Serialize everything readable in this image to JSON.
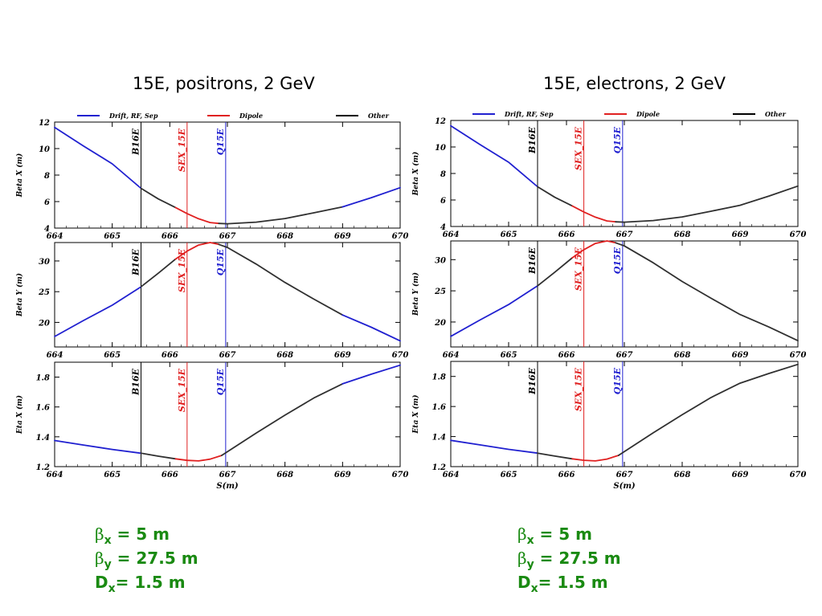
{
  "panels": [
    {
      "title": "15E, positrons, 2 GeV"
    },
    {
      "title": "15E, electrons, 2 GeV"
    }
  ],
  "legend": [
    {
      "label": "Drift, RF, Sep",
      "color": "#2020d0"
    },
    {
      "label": "Dipole",
      "color": "#e02020"
    },
    {
      "label": "Other",
      "color": "#000000"
    }
  ],
  "colors": {
    "drift": "#2020d0",
    "dipole": "#e02020",
    "other": "#303030",
    "param_text": "#1a8a12"
  },
  "markers": [
    {
      "label": "B16E",
      "s": 665.5,
      "color": "#000000"
    },
    {
      "label": "SEX_15E",
      "s": 666.3,
      "color": "#e02020"
    },
    {
      "label": "Q15E",
      "s": 666.97,
      "color": "#2020d0"
    }
  ],
  "params": [
    {
      "sym": "β",
      "sub": "x",
      "text": " = 5 m"
    },
    {
      "sym": "β",
      "sub": "y",
      "text": " = 27.5 m"
    },
    {
      "sym": "D",
      "sub": "x",
      "text": "= 1.5 m"
    }
  ],
  "chart_data": [
    {
      "type": "line",
      "panel": "15E, positrons, 2 GeV",
      "plots": [
        {
          "ylabel": "Beta X (m)",
          "xlabel": "",
          "xlim": [
            664,
            670
          ],
          "ylim": [
            4,
            12
          ],
          "xticks": [
            664,
            665,
            666,
            667,
            668,
            669,
            670
          ],
          "yticks": [
            4,
            6,
            8,
            10,
            12
          ],
          "segments": [
            {
              "type": "drift",
              "points": [
                [
                  664,
                  11.6
                ],
                [
                  664.5,
                  10.2
                ],
                [
                  665,
                  8.85
                ],
                [
                  665.5,
                  7.0
                ]
              ]
            },
            {
              "type": "other",
              "points": [
                [
                  665.5,
                  7.0
                ],
                [
                  665.8,
                  6.2
                ],
                [
                  666.1,
                  5.55
                ]
              ]
            },
            {
              "type": "dipole",
              "points": [
                [
                  666.1,
                  5.55
                ],
                [
                  666.3,
                  5.1
                ],
                [
                  666.5,
                  4.7
                ],
                [
                  666.7,
                  4.42
                ],
                [
                  666.85,
                  4.35
                ]
              ]
            },
            {
              "type": "other",
              "points": [
                [
                  666.85,
                  4.35
                ],
                [
                  667,
                  4.33
                ],
                [
                  667.5,
                  4.45
                ],
                [
                  668,
                  4.72
                ],
                [
                  668.5,
                  5.15
                ],
                [
                  669,
                  5.6
                ]
              ]
            },
            {
              "type": "drift",
              "points": [
                [
                  669,
                  5.6
                ],
                [
                  669.5,
                  6.3
                ],
                [
                  670,
                  7.05
                ]
              ]
            }
          ]
        },
        {
          "ylabel": "Beta Y (m)",
          "xlabel": "",
          "xlim": [
            664,
            670
          ],
          "ylim": [
            16,
            33
          ],
          "xticks": [
            664,
            665,
            666,
            667,
            668,
            669,
            670
          ],
          "yticks": [
            20,
            25,
            30
          ],
          "segments": [
            {
              "type": "drift",
              "points": [
                [
                  664,
                  17.7
                ],
                [
                  664.5,
                  20.3
                ],
                [
                  665,
                  22.8
                ],
                [
                  665.5,
                  25.8
                ]
              ]
            },
            {
              "type": "other",
              "points": [
                [
                  665.5,
                  25.8
                ],
                [
                  665.8,
                  28.0
                ],
                [
                  666.1,
                  30.3
                ]
              ]
            },
            {
              "type": "dipole",
              "points": [
                [
                  666.1,
                  30.3
                ],
                [
                  666.3,
                  31.6
                ],
                [
                  666.5,
                  32.6
                ],
                [
                  666.7,
                  33.0
                ],
                [
                  666.85,
                  32.7
                ]
              ]
            },
            {
              "type": "other",
              "points": [
                [
                  666.85,
                  32.7
                ],
                [
                  667,
                  32.2
                ],
                [
                  667.5,
                  29.5
                ],
                [
                  668,
                  26.5
                ],
                [
                  668.5,
                  23.8
                ],
                [
                  669,
                  21.2
                ]
              ]
            },
            {
              "type": "drift",
              "points": [
                [
                  669,
                  21.2
                ],
                [
                  669.5,
                  19.2
                ],
                [
                  670,
                  17.0
                ]
              ]
            }
          ]
        },
        {
          "ylabel": "Eta X (m)",
          "xlabel": "S(m)",
          "xlim": [
            664,
            670
          ],
          "ylim": [
            1.2,
            1.9
          ],
          "xticks": [
            664,
            665,
            666,
            667,
            668,
            669,
            670
          ],
          "yticks": [
            1.2,
            1.4,
            1.6,
            1.8
          ],
          "segments": [
            {
              "type": "drift",
              "points": [
                [
                  664,
                  1.375
                ],
                [
                  664.5,
                  1.345
                ],
                [
                  665,
                  1.315
                ],
                [
                  665.5,
                  1.29
                ]
              ]
            },
            {
              "type": "other",
              "points": [
                [
                  665.5,
                  1.29
                ],
                [
                  665.8,
                  1.27
                ],
                [
                  666.1,
                  1.252
                ]
              ]
            },
            {
              "type": "dipole",
              "points": [
                [
                  666.1,
                  1.252
                ],
                [
                  666.3,
                  1.242
                ],
                [
                  666.5,
                  1.238
                ],
                [
                  666.7,
                  1.25
                ],
                [
                  666.9,
                  1.275
                ]
              ]
            },
            {
              "type": "other",
              "points": [
                [
                  666.9,
                  1.275
                ],
                [
                  667.5,
                  1.425
                ],
                [
                  668,
                  1.545
                ],
                [
                  668.5,
                  1.66
                ],
                [
                  669,
                  1.755
                ]
              ]
            },
            {
              "type": "drift",
              "points": [
                [
                  669,
                  1.755
                ],
                [
                  669.5,
                  1.82
                ],
                [
                  670,
                  1.88
                ]
              ]
            }
          ]
        }
      ]
    },
    {
      "type": "line",
      "panel": "15E, electrons, 2 GeV",
      "plots": [
        {
          "ylabel": "Beta X (m)",
          "xlabel": "",
          "xlim": [
            664,
            670
          ],
          "ylim": [
            4,
            12
          ],
          "xticks": [
            664,
            665,
            666,
            667,
            668,
            669,
            670
          ],
          "yticks": [
            4,
            6,
            8,
            10,
            12
          ],
          "segments": [
            {
              "type": "drift",
              "points": [
                [
                  664,
                  11.6
                ],
                [
                  664.5,
                  10.2
                ],
                [
                  665,
                  8.85
                ],
                [
                  665.5,
                  7.0
                ]
              ]
            },
            {
              "type": "other",
              "points": [
                [
                  665.5,
                  7.0
                ],
                [
                  665.8,
                  6.2
                ],
                [
                  666.1,
                  5.55
                ]
              ]
            },
            {
              "type": "dipole",
              "points": [
                [
                  666.1,
                  5.55
                ],
                [
                  666.3,
                  5.1
                ],
                [
                  666.5,
                  4.7
                ],
                [
                  666.7,
                  4.42
                ],
                [
                  666.85,
                  4.35
                ]
              ]
            },
            {
              "type": "other",
              "points": [
                [
                  666.85,
                  4.35
                ],
                [
                  667,
                  4.33
                ],
                [
                  667.5,
                  4.45
                ],
                [
                  668,
                  4.72
                ],
                [
                  668.5,
                  5.15
                ],
                [
                  669,
                  5.6
                ],
                [
                  669.5,
                  6.3
                ],
                [
                  670,
                  7.05
                ]
              ]
            }
          ]
        },
        {
          "ylabel": "Beta Y (m)",
          "xlabel": "",
          "xlim": [
            664,
            670
          ],
          "ylim": [
            16,
            33
          ],
          "xticks": [
            664,
            665,
            666,
            667,
            668,
            669,
            670
          ],
          "yticks": [
            20,
            25,
            30
          ],
          "segments": [
            {
              "type": "drift",
              "points": [
                [
                  664,
                  17.7
                ],
                [
                  664.5,
                  20.3
                ],
                [
                  665,
                  22.8
                ],
                [
                  665.5,
                  25.8
                ]
              ]
            },
            {
              "type": "other",
              "points": [
                [
                  665.5,
                  25.8
                ],
                [
                  665.8,
                  28.0
                ],
                [
                  666.1,
                  30.3
                ]
              ]
            },
            {
              "type": "dipole",
              "points": [
                [
                  666.1,
                  30.3
                ],
                [
                  666.3,
                  31.6
                ],
                [
                  666.5,
                  32.6
                ],
                [
                  666.7,
                  33.0
                ],
                [
                  666.85,
                  32.7
                ]
              ]
            },
            {
              "type": "other",
              "points": [
                [
                  666.85,
                  32.7
                ],
                [
                  667,
                  32.2
                ],
                [
                  667.5,
                  29.5
                ],
                [
                  668,
                  26.5
                ],
                [
                  668.5,
                  23.8
                ],
                [
                  669,
                  21.2
                ],
                [
                  669.5,
                  19.2
                ],
                [
                  670,
                  17.0
                ]
              ]
            }
          ]
        },
        {
          "ylabel": "Eta X (m)",
          "xlabel": "S(m)",
          "xlim": [
            664,
            670
          ],
          "ylim": [
            1.2,
            1.9
          ],
          "xticks": [
            664,
            665,
            666,
            667,
            668,
            669,
            670
          ],
          "yticks": [
            1.2,
            1.4,
            1.6,
            1.8
          ],
          "segments": [
            {
              "type": "drift",
              "points": [
                [
                  664,
                  1.375
                ],
                [
                  664.5,
                  1.345
                ],
                [
                  665,
                  1.315
                ],
                [
                  665.5,
                  1.29
                ]
              ]
            },
            {
              "type": "other",
              "points": [
                [
                  665.5,
                  1.29
                ],
                [
                  665.8,
                  1.27
                ],
                [
                  666.1,
                  1.252
                ]
              ]
            },
            {
              "type": "dipole",
              "points": [
                [
                  666.1,
                  1.252
                ],
                [
                  666.3,
                  1.242
                ],
                [
                  666.5,
                  1.238
                ],
                [
                  666.7,
                  1.25
                ],
                [
                  666.9,
                  1.275
                ]
              ]
            },
            {
              "type": "other",
              "points": [
                [
                  666.9,
                  1.275
                ],
                [
                  667.5,
                  1.425
                ],
                [
                  668,
                  1.545
                ],
                [
                  668.5,
                  1.66
                ],
                [
                  669,
                  1.755
                ],
                [
                  669.5,
                  1.82
                ],
                [
                  670,
                  1.88
                ]
              ]
            }
          ]
        }
      ]
    }
  ]
}
